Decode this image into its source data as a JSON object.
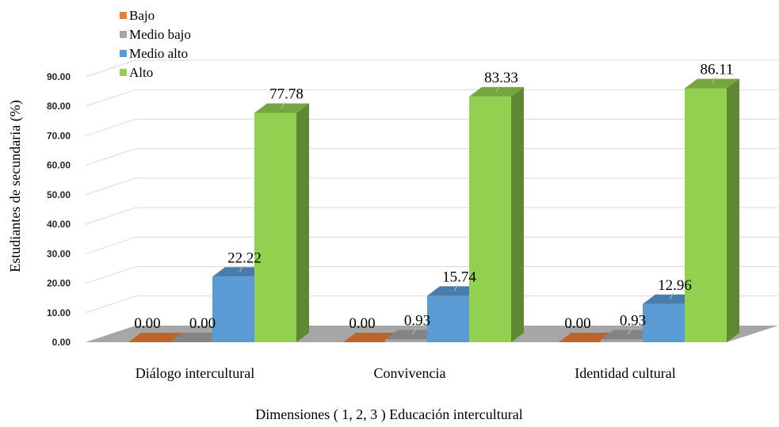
{
  "chart_data": {
    "type": "bar",
    "title": "",
    "xlabel": "Dimensiones ( 1, 2, 3 ) Educación intercultural",
    "ylabel": "Estudiantes de secundaria (%)",
    "ylim": [
      0,
      90
    ],
    "yticks": [
      "0.00",
      "10.00",
      "20.00",
      "30.00",
      "40.00",
      "50.00",
      "60.00",
      "70.00",
      "80.00",
      "90.00"
    ],
    "grid": true,
    "legend_position": "top-left",
    "categories": [
      "Diálogo intercultural",
      "Convivencia",
      "Identidad cultural"
    ],
    "series": [
      {
        "name": "Bajo",
        "color": "#ED7D31",
        "values": [
          0.0,
          0.0,
          0.0
        ],
        "labels": [
          "0.00",
          "0.00",
          "0.00"
        ]
      },
      {
        "name": "Medio bajo",
        "color": "#A5A5A5",
        "values": [
          0.0,
          0.93,
          0.93
        ],
        "labels": [
          "0.00",
          "0.93",
          "0.93"
        ]
      },
      {
        "name": "Medio alto",
        "color": "#5B9BD5",
        "values": [
          22.22,
          15.74,
          12.96
        ],
        "labels": [
          "22.22",
          "15.74",
          "12.96"
        ]
      },
      {
        "name": "Alto",
        "color": "#92D050",
        "values": [
          77.78,
          83.33,
          86.11
        ],
        "labels": [
          "77.78",
          "83.33",
          "86.11"
        ]
      }
    ]
  }
}
